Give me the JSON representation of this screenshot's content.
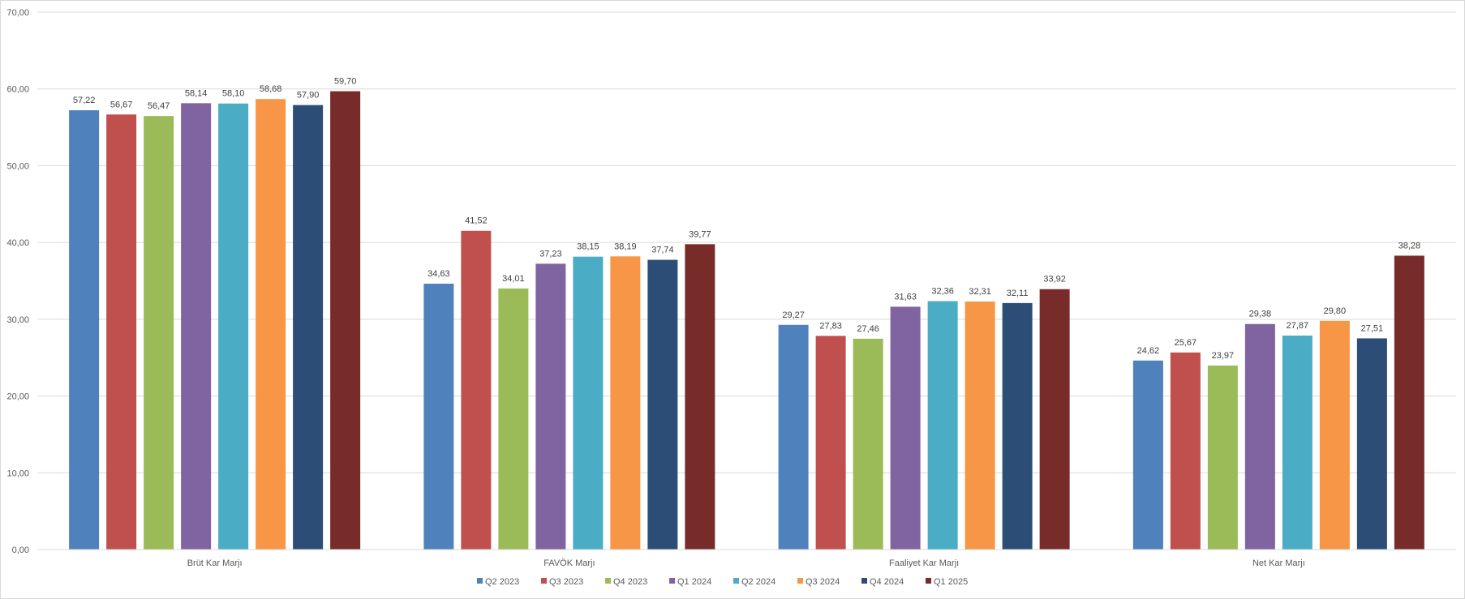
{
  "chart_data": {
    "type": "bar",
    "title": "",
    "xlabel": "",
    "ylabel": "",
    "ylim": [
      0,
      70
    ],
    "y_ticks": [
      "0,00",
      "10,00",
      "20,00",
      "30,00",
      "40,00",
      "50,00",
      "60,00",
      "70,00"
    ],
    "grid": true,
    "legend_position": "bottom",
    "categories": [
      "Brüt Kar Marjı",
      "FAVÖK Marjı",
      "Faaliyet Kar Marjı",
      "Net Kar Marjı"
    ],
    "series": [
      {
        "name": "Q2 2023",
        "color": "#4F81BD",
        "values": [
          57.22,
          34.63,
          29.27,
          24.62
        ],
        "labels": [
          "57,22",
          "34,63",
          "29,27",
          "24,62"
        ]
      },
      {
        "name": "Q3 2023",
        "color": "#C0504D",
        "values": [
          56.67,
          41.52,
          27.83,
          25.67
        ],
        "labels": [
          "56,67",
          "41,52",
          "27,83",
          "25,67"
        ]
      },
      {
        "name": "Q4 2023",
        "color": "#9BBB59",
        "values": [
          56.47,
          34.01,
          27.46,
          23.97
        ],
        "labels": [
          "56,47",
          "34,01",
          "27,46",
          "23,97"
        ]
      },
      {
        "name": "Q1 2024",
        "color": "#8064A2",
        "values": [
          58.14,
          37.23,
          31.63,
          29.38
        ],
        "labels": [
          "58,14",
          "37,23",
          "31,63",
          "29,38"
        ]
      },
      {
        "name": "Q2 2024",
        "color": "#4BACC6",
        "values": [
          58.1,
          38.15,
          32.36,
          27.87
        ],
        "labels": [
          "58,10",
          "38,15",
          "32,36",
          "27,87"
        ]
      },
      {
        "name": "Q3 2024",
        "color": "#F79646",
        "values": [
          58.68,
          38.19,
          32.31,
          29.8
        ],
        "labels": [
          "58,68",
          "38,19",
          "32,31",
          "29,80"
        ]
      },
      {
        "name": "Q4 2024",
        "color": "#2C4D75",
        "values": [
          57.9,
          37.74,
          32.11,
          27.51
        ],
        "labels": [
          "57,90",
          "37,74",
          "32,11",
          "27,51"
        ]
      },
      {
        "name": "Q1 2025",
        "color": "#772C2A",
        "values": [
          59.7,
          39.77,
          33.92,
          38.28
        ],
        "labels": [
          "59,70",
          "39,77",
          "33,92",
          "38,28"
        ]
      }
    ]
  }
}
